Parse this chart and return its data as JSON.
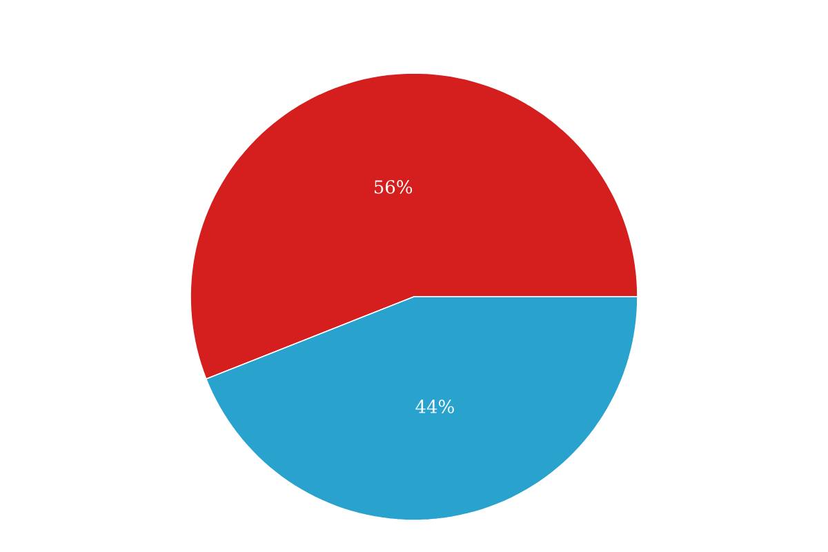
{
  "chart_data": {
    "type": "pie",
    "categories": [
      null,
      null
    ],
    "values": [
      56,
      44
    ],
    "colors": [
      "#d41f1e",
      "#29a3cd"
    ],
    "value_labels": [
      "56%",
      "44%"
    ]
  }
}
